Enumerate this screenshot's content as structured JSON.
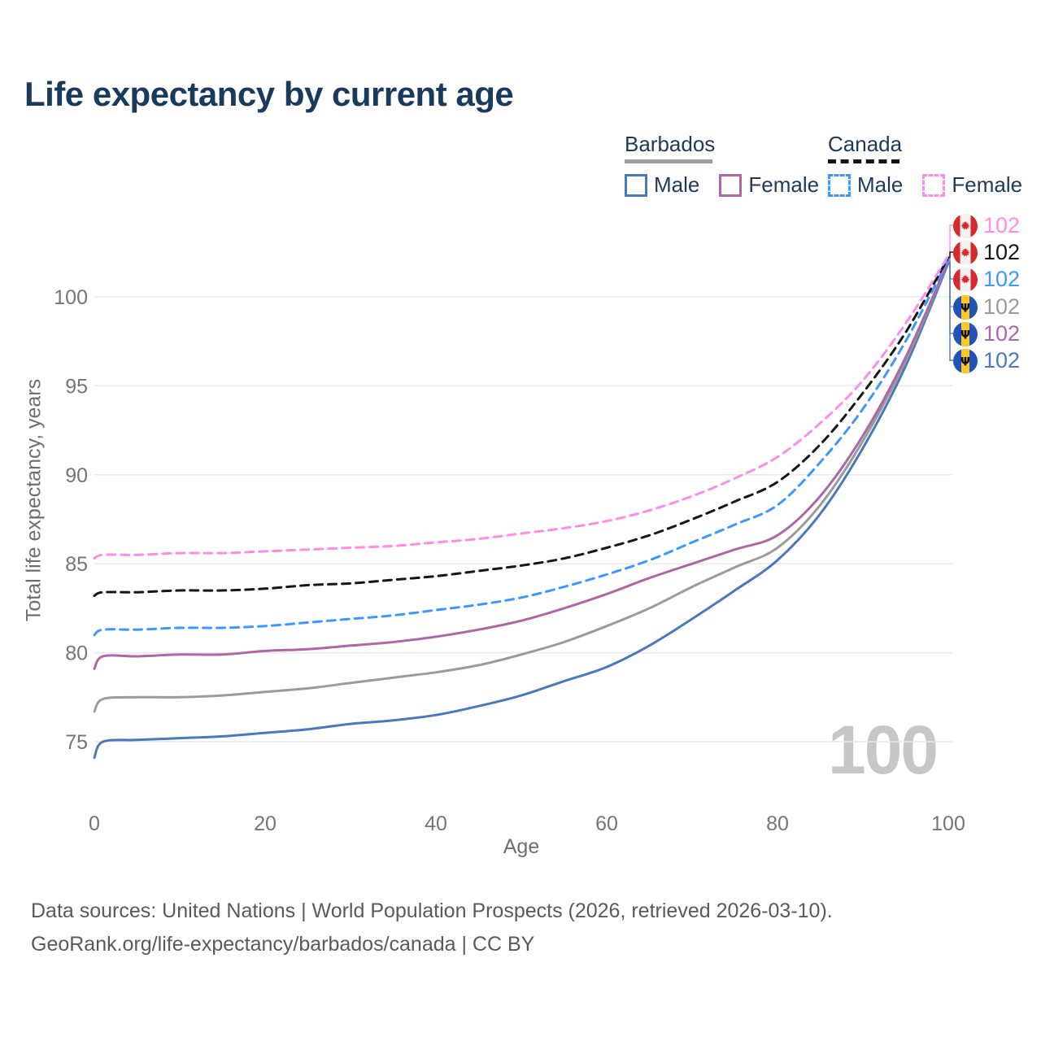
{
  "page": {
    "title": "Life expectancy by current age",
    "watermark_age": "100",
    "footer_line1": "Data sources: United Nations | World Population Prospects (2026, retrieved 2026-03-10).",
    "footer_line2": "GeoRank.org/life-expectancy/barbados/canada | CC BY"
  },
  "legend": {
    "groups": [
      {
        "country": "Barbados",
        "line_style": "solid",
        "underline_color": "#9e9e9e",
        "items": [
          {
            "label": "Male",
            "color": "#4a79ba",
            "dashed": false
          },
          {
            "label": "Female",
            "color": "#ac68a5",
            "dashed": false
          }
        ]
      },
      {
        "country": "Canada",
        "line_style": "dashed",
        "underline_color": "#141414",
        "items": [
          {
            "label": "Male",
            "color": "#3e97ff",
            "dashed": true
          },
          {
            "label": "Female",
            "color": "#ff8de8",
            "dashed": true
          }
        ]
      }
    ]
  },
  "chart_data": {
    "type": "line",
    "title": "Life expectancy by current age",
    "xlabel": "Age",
    "ylabel": "Total life expectancy, years",
    "xlim": [
      0,
      100
    ],
    "ylim": [
      73.5,
      103
    ],
    "xticks": [
      0,
      20,
      40,
      60,
      80,
      100
    ],
    "yticks": [
      75,
      80,
      85,
      90,
      95,
      100
    ],
    "grid": "horizontal",
    "grid_color": "#e9e9e9",
    "legend_position": "top-right",
    "ages": [
      0,
      1,
      5,
      10,
      15,
      20,
      25,
      30,
      35,
      40,
      45,
      50,
      55,
      60,
      65,
      70,
      75,
      80,
      85,
      90,
      95,
      100
    ],
    "series": [
      {
        "name": "barbados_male",
        "country": "Barbados",
        "sex": "Male",
        "color": "#4a79ba",
        "dashed": false,
        "values": [
          74.1,
          75.0,
          75.1,
          75.2,
          75.3,
          75.5,
          75.7,
          76.0,
          76.2,
          76.5,
          77.0,
          77.6,
          78.4,
          79.2,
          80.4,
          81.9,
          83.5,
          85.2,
          87.8,
          91.5,
          96.1,
          101.9
        ]
      },
      {
        "name": "barbados_both",
        "country": "Barbados",
        "sex": "Both sexes",
        "color": "#9b9b9b",
        "dashed": false,
        "values": [
          76.7,
          77.4,
          77.5,
          77.5,
          77.6,
          77.8,
          78.0,
          78.3,
          78.6,
          78.9,
          79.3,
          79.9,
          80.6,
          81.5,
          82.5,
          83.7,
          84.8,
          85.9,
          88.3,
          91.9,
          96.4,
          102.0
        ]
      },
      {
        "name": "barbados_female",
        "country": "Barbados",
        "sex": "Female",
        "color": "#ac68a5",
        "dashed": false,
        "values": [
          79.1,
          79.8,
          79.8,
          79.9,
          79.9,
          80.1,
          80.2,
          80.4,
          80.6,
          80.9,
          81.3,
          81.8,
          82.5,
          83.3,
          84.2,
          85.0,
          85.8,
          86.6,
          88.8,
          92.2,
          96.6,
          102.0
        ]
      },
      {
        "name": "canada_male",
        "country": "Canada",
        "sex": "Male",
        "color": "#3e97ff",
        "dashed": true,
        "values": [
          81.0,
          81.3,
          81.3,
          81.4,
          81.4,
          81.5,
          81.7,
          81.9,
          82.1,
          82.4,
          82.7,
          83.1,
          83.7,
          84.4,
          85.2,
          86.2,
          87.2,
          88.3,
          90.7,
          93.7,
          97.5,
          102.1
        ]
      },
      {
        "name": "canada_both",
        "country": "Canada",
        "sex": "Both sexes",
        "color": "#161616",
        "dashed": true,
        "values": [
          83.2,
          83.4,
          83.4,
          83.5,
          83.5,
          83.6,
          83.8,
          83.9,
          84.1,
          84.3,
          84.6,
          84.9,
          85.3,
          85.9,
          86.6,
          87.5,
          88.5,
          89.6,
          91.7,
          94.6,
          98.0,
          102.2
        ]
      },
      {
        "name": "canada_female",
        "country": "Canada",
        "sex": "Female",
        "color": "#ff8de8",
        "dashed": true,
        "values": [
          85.3,
          85.5,
          85.5,
          85.6,
          85.6,
          85.7,
          85.8,
          85.9,
          86.0,
          86.2,
          86.4,
          86.7,
          87.0,
          87.4,
          88.0,
          88.8,
          89.8,
          91.0,
          92.9,
          95.3,
          98.5,
          102.3
        ]
      }
    ],
    "end_labels": [
      {
        "series": "canada_female",
        "flag": "canada",
        "value": "102"
      },
      {
        "series": "canada_both",
        "flag": "canada",
        "value": "102"
      },
      {
        "series": "canada_male",
        "flag": "canada",
        "value": "102"
      },
      {
        "series": "barbados_both",
        "flag": "barbados",
        "value": "102"
      },
      {
        "series": "barbados_female",
        "flag": "barbados",
        "value": "102"
      },
      {
        "series": "barbados_male",
        "flag": "barbados",
        "value": "102"
      }
    ],
    "flag_colors": {
      "canada_red": "#d5292d",
      "canada_white": "#f4f2ef",
      "barbados_blue": "#2152b4",
      "barbados_yellow": "#ffc72c",
      "barbados_trident": "#101010"
    }
  }
}
